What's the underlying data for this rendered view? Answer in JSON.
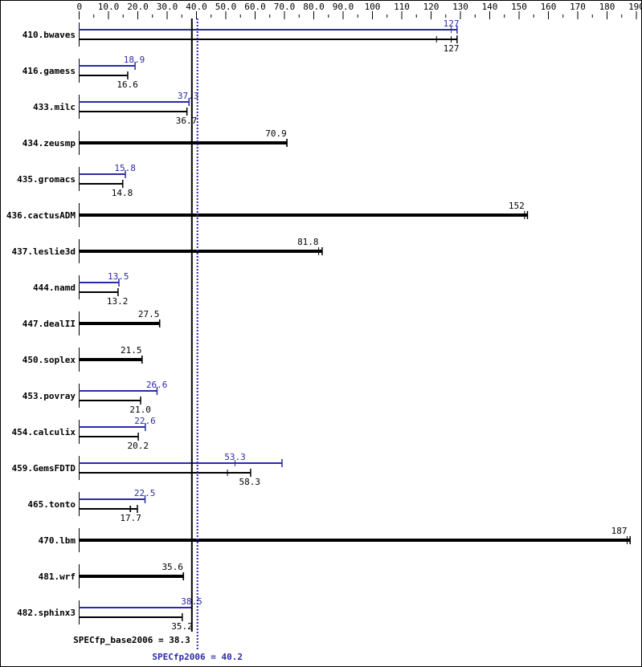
{
  "chart_data": {
    "type": "bar",
    "orientation": "horizontal",
    "xlim": [
      0,
      190
    ],
    "x_ticks": [
      "0",
      "10.0",
      "20.0",
      "30.0",
      "40.0",
      "50.0",
      "60.0",
      "70.0",
      "80.0",
      "90.0",
      "100",
      "110",
      "120",
      "130",
      "140",
      "150",
      "160",
      "170",
      "180",
      "190"
    ],
    "x_tick_values": [
      0,
      10,
      20,
      30,
      40,
      50,
      60,
      70,
      80,
      90,
      100,
      110,
      120,
      130,
      140,
      150,
      160,
      170,
      180,
      190
    ],
    "colors": {
      "base": "#000000",
      "peak": "#2a2aa8"
    },
    "categories": [
      "410.bwaves",
      "416.gamess",
      "433.milc",
      "434.zeusmp",
      "435.gromacs",
      "436.cactusADM",
      "437.leslie3d",
      "444.namd",
      "447.dealII",
      "450.soplex",
      "453.povray",
      "454.calculix",
      "459.GemsFDTD",
      "465.tonto",
      "470.lbm",
      "481.wrf",
      "482.sphinx3"
    ],
    "series": [
      {
        "key": "peak",
        "values": [
          127,
          18.9,
          37.3,
          null,
          15.8,
          null,
          null,
          13.5,
          null,
          null,
          26.6,
          22.6,
          53.3,
          22.5,
          null,
          null,
          38.5
        ],
        "labels": [
          "127",
          "18.9",
          "37.3",
          null,
          "15.8",
          null,
          null,
          "13.5",
          null,
          null,
          "26.6",
          "22.6",
          "53.3",
          "22.5",
          null,
          null,
          "38.5"
        ],
        "max": [
          129,
          19.2,
          37.6,
          null,
          15.9,
          null,
          null,
          13.7,
          null,
          null,
          26.7,
          22.7,
          69.3,
          22.6,
          null,
          null,
          38.6
        ]
      },
      {
        "key": "base",
        "values": [
          127,
          16.6,
          36.7,
          70.9,
          14.8,
          152,
          81.8,
          13.2,
          27.5,
          21.5,
          21.0,
          20.2,
          58.3,
          17.7,
          187,
          35.6,
          35.2
        ],
        "labels": [
          "127",
          "16.6",
          "36.7",
          "70.9",
          "14.8",
          "152",
          "81.8",
          "13.2",
          "27.5",
          "21.5",
          "21.0",
          "20.2",
          "58.3",
          "17.7",
          "187",
          "35.6",
          "35.2"
        ],
        "min": [
          122,
          16.6,
          36.7,
          70.9,
          14.8,
          152,
          81.8,
          13.2,
          27.5,
          21.5,
          21.0,
          20.2,
          50.7,
          17.5,
          187,
          35.6,
          35.2
        ],
        "max": [
          129,
          16.7,
          36.9,
          71.0,
          15.0,
          153,
          83.0,
          13.4,
          27.6,
          21.6,
          21.1,
          20.3,
          58.6,
          20.0,
          188,
          35.7,
          35.3
        ]
      }
    ],
    "reference_lines": [
      {
        "key": "base",
        "value": 38.3,
        "label": "SPECfp_base2006 = 38.3"
      },
      {
        "key": "peak",
        "value": 40.2,
        "label": "SPECfp2006 = 40.2"
      }
    ]
  }
}
